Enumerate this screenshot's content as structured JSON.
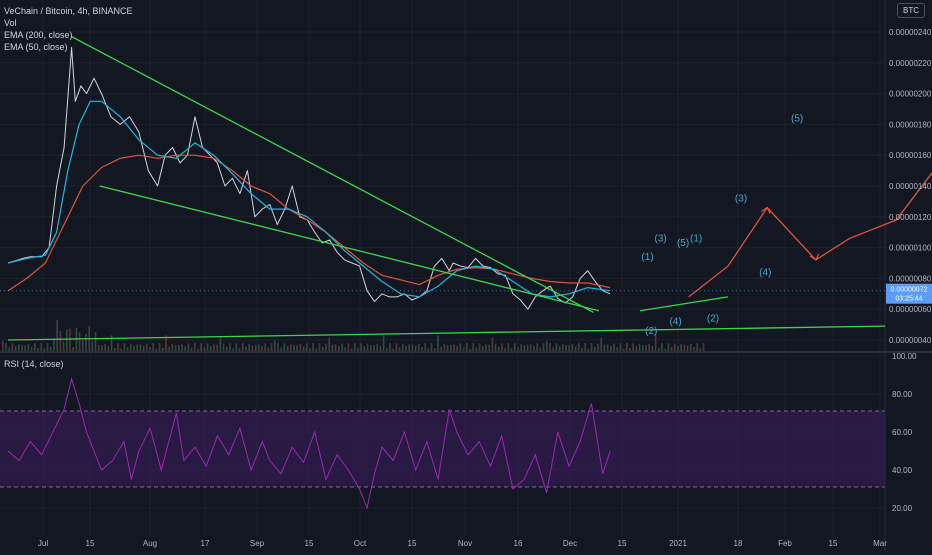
{
  "header": {
    "title": "VeChain / Bitcoin, 4h, BINANCE",
    "vol_label": "Vol",
    "ema200_label": "EMA (200, close)",
    "ema50_label": "EMA (50, close)",
    "currency_badge": "BTC",
    "rsi_label": "RSI (14, close)"
  },
  "price_badge": {
    "value": "0.00000072",
    "countdown": "03:25:44"
  },
  "colors": {
    "background": "#131722",
    "price_line": "#d1d4dc",
    "ema200": "#e0533d",
    "ema50": "#26b4d8",
    "trendlines": "#3dd44a",
    "wave_labels": "#4aa3c8",
    "projection": "#e0533d",
    "rsi_line": "#9c27b0",
    "rsi_band": "#3b1d5c"
  },
  "chart_data": [
    {
      "type": "line",
      "title": "VeChain / Bitcoin, 4h, BINANCE",
      "x_tick_labels": [
        "Jul",
        "15",
        "Aug",
        "17",
        "Sep",
        "15",
        "Oct",
        "15",
        "Nov",
        "16",
        "Dec",
        "15",
        "2021",
        "18",
        "Feb",
        "15",
        "Mar"
      ],
      "y_tick_labels": [
        "0.00000240",
        "0.00000220",
        "0.00000200",
        "0.00000180",
        "0.00000160",
        "0.00000140",
        "0.00000120",
        "0.00000100",
        "0.00000080",
        "0.00000060",
        "0.00000040"
      ],
      "ylim": [
        3.2e-07,
        2.48e-06
      ],
      "series": [
        {
          "name": "VeChain / Bitcoin",
          "key": "price",
          "x": [
            0,
            4,
            8,
            12,
            18,
            22,
            26,
            30,
            34,
            36,
            39,
            42,
            46,
            50,
            55,
            60,
            65,
            70,
            75,
            80,
            84,
            88,
            92,
            96,
            100,
            104,
            108,
            112,
            116,
            120,
            124,
            128,
            132,
            136,
            140,
            144,
            148,
            152,
            156,
            160,
            164,
            168,
            172,
            176,
            180,
            184,
            188,
            192,
            196,
            200,
            204,
            208,
            212,
            216,
            220,
            224,
            228,
            232,
            236,
            238,
            242,
            246,
            250,
            254,
            258,
            262,
            266,
            270,
            274,
            278,
            282,
            286,
            290,
            294,
            298,
            302,
            306,
            310,
            314,
            318,
            322
          ],
          "values": [
            9e-07,
            9.15e-07,
            9.3e-07,
            9.4e-07,
            9.4e-07,
            1e-06,
            1.4e-06,
            1.65e-06,
            2.3e-06,
            1.95e-06,
            2.05e-06,
            2e-06,
            2.1e-06,
            2e-06,
            1.85e-06,
            1.8e-06,
            1.85e-06,
            1.75e-06,
            1.5e-06,
            1.4e-06,
            1.6e-06,
            1.65e-06,
            1.55e-06,
            1.6e-06,
            1.85e-06,
            1.65e-06,
            1.6e-06,
            1.55e-06,
            1.4e-06,
            1.45e-06,
            1.35e-06,
            1.5e-06,
            1.2e-06,
            1.25e-06,
            1.28e-06,
            1.15e-06,
            1.25e-06,
            1.4e-06,
            1.2e-06,
            1.18e-06,
            1.1e-06,
            1.03e-06,
            1.05e-06,
            9.7e-07,
            9.2e-07,
            9e-07,
            8.8e-07,
            7.2e-07,
            6.5e-07,
            7e-07,
            6.8e-07,
            6.8e-07,
            7e-07,
            6.6e-07,
            6.8e-07,
            7.2e-07,
            8.8e-07,
            9.3e-07,
            8.5e-07,
            9e-07,
            8.8e-07,
            8.7e-07,
            9.3e-07,
            8.8e-07,
            8.7e-07,
            8.3e-07,
            8.2e-07,
            7e-07,
            6.6e-07,
            6e-07,
            6.8e-07,
            7.2e-07,
            7.5e-07,
            6.7e-07,
            6.4e-07,
            6.8e-07,
            8e-07,
            8.5e-07,
            7.8e-07,
            7.2e-07,
            7e-07
          ]
        },
        {
          "name": "EMA (200, close)",
          "key": "ema200",
          "x": [
            0,
            10,
            20,
            30,
            40,
            50,
            60,
            70,
            80,
            90,
            100,
            110,
            120,
            130,
            140,
            150,
            160,
            170,
            180,
            190,
            200,
            210,
            220,
            230,
            240,
            250,
            260,
            270,
            280,
            290,
            300,
            310,
            322
          ],
          "values": [
            7.2e-07,
            8e-07,
            9e-07,
            1.15e-06,
            1.4e-06,
            1.52e-06,
            1.58e-06,
            1.6e-06,
            1.58e-06,
            1.6e-06,
            1.6e-06,
            1.58e-06,
            1.5e-06,
            1.4e-06,
            1.35e-06,
            1.25e-06,
            1.18e-06,
            1.1e-06,
            1e-06,
            9e-07,
            8.2e-07,
            7.9e-07,
            7.6e-07,
            8.2e-07,
            8.6e-07,
            8.7e-07,
            8.6e-07,
            8.3e-07,
            8e-07,
            7.8e-07,
            7.7e-07,
            7.7e-07,
            7.4e-07
          ]
        },
        {
          "name": "EMA (50, close)",
          "key": "ema50",
          "x": [
            0,
            10,
            20,
            26,
            32,
            38,
            44,
            50,
            60,
            70,
            80,
            90,
            100,
            110,
            120,
            130,
            140,
            150,
            160,
            170,
            180,
            190,
            200,
            210,
            220,
            230,
            240,
            250,
            260,
            270,
            280,
            290,
            300,
            310,
            322
          ],
          "values": [
            9e-07,
            9.3e-07,
            9.5e-07,
            1.1e-06,
            1.5e-06,
            1.8e-06,
            1.95e-06,
            1.95e-06,
            1.85e-06,
            1.7e-06,
            1.6e-06,
            1.58e-06,
            1.68e-06,
            1.6e-06,
            1.48e-06,
            1.35e-06,
            1.25e-06,
            1.25e-06,
            1.2e-06,
            1.1e-06,
            9.8e-07,
            8.8e-07,
            7.8e-07,
            7e-07,
            6.8e-07,
            7.5e-07,
            8.5e-07,
            8.8e-07,
            8.6e-07,
            7.8e-07,
            7e-07,
            6.8e-07,
            7e-07,
            7.4e-07,
            7.2e-07
          ]
        }
      ],
      "annotations": {
        "trendlines": [
          {
            "x1": 34,
            "y1": 2.37e-06,
            "x2": 313,
            "y2": 5.8e-07
          },
          {
            "x1": 49,
            "y1": 1.4e-06,
            "x2": 316,
            "y2": 5.9e-07
          },
          {
            "x1": 0,
            "y1": 4e-07,
            "x2": 469,
            "y2": 4.9e-07
          },
          {
            "x1": 338,
            "y1": 5.9e-07,
            "x2": 385,
            "y2": 6.8e-07
          }
        ],
        "projection": {
          "x": [
            364,
            385,
            406,
            432,
            450,
            475,
            505
          ],
          "values": [
            6.8e-07,
            8.8e-07,
            1.26e-06,
            9.2e-07,
            1.06e-06,
            1.18e-06,
            1.66e-06
          ]
        },
        "wave_labels": [
          {
            "text": "(1)",
            "x": 342,
            "y": 9.2e-07
          },
          {
            "text": "(2)",
            "x": 344,
            "y": 4.4e-07
          },
          {
            "text": "(3)",
            "x": 349,
            "y": 1.04e-06
          },
          {
            "text": "(4)",
            "x": 357,
            "y": 5e-07
          },
          {
            "text": "(5)",
            "x": 361,
            "y": 1.01e-06
          },
          {
            "text": "(1)",
            "x": 368,
            "y": 1.04e-06
          },
          {
            "text": "(2)",
            "x": 377,
            "y": 5.2e-07
          },
          {
            "text": "(3)",
            "x": 392,
            "y": 1.3e-06
          },
          {
            "text": "(4)",
            "x": 405,
            "y": 8.2e-07
          },
          {
            "text": "(5)",
            "x": 422,
            "y": 1.82e-06
          }
        ]
      }
    },
    {
      "type": "line",
      "title": "RSI (14, close)",
      "y_tick_labels": [
        "100.00",
        "80.00",
        "60.00",
        "40.00",
        "20.00"
      ],
      "ylim": [
        0,
        100
      ],
      "band": [
        30,
        70
      ],
      "series": [
        {
          "name": "RSI (14, close)",
          "key": "rsi",
          "x": [
            0,
            6,
            12,
            18,
            24,
            30,
            34,
            38,
            42,
            46,
            50,
            56,
            62,
            66,
            70,
            76,
            82,
            86,
            90,
            94,
            100,
            106,
            112,
            118,
            124,
            130,
            136,
            140,
            146,
            152,
            158,
            164,
            170,
            176,
            182,
            188,
            192,
            196,
            200,
            206,
            212,
            218,
            224,
            230,
            236,
            240,
            246,
            252,
            258,
            264,
            270,
            276,
            282,
            288,
            294,
            300,
            306,
            312,
            318,
            322
          ],
          "values": [
            50,
            45,
            55,
            48,
            60,
            72,
            88,
            75,
            60,
            50,
            40,
            45,
            55,
            35,
            50,
            62,
            40,
            55,
            70,
            45,
            52,
            42,
            58,
            48,
            62,
            40,
            55,
            45,
            38,
            52,
            44,
            60,
            35,
            48,
            40,
            30,
            20,
            38,
            52,
            45,
            60,
            40,
            55,
            35,
            72,
            60,
            48,
            55,
            42,
            58,
            30,
            35,
            48,
            28,
            60,
            42,
            55,
            75,
            38,
            50
          ]
        }
      ]
    }
  ]
}
